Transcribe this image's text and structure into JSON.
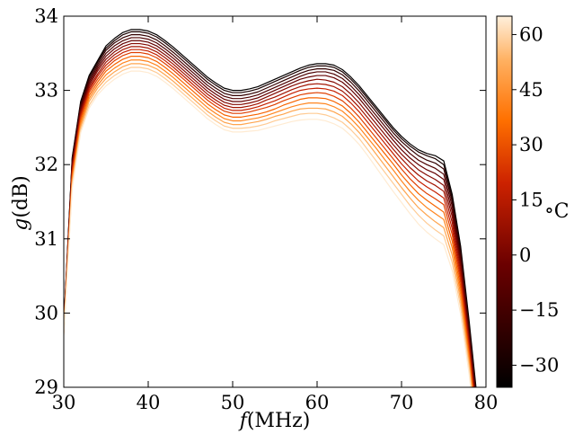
{
  "chart_data": {
    "type": "line",
    "title": "",
    "xlabel": "f (MHz)",
    "xlabel_var": "f",
    "xlabel_unit": "(MHz)",
    "ylabel": "g (dB)",
    "ylabel_var": "g",
    "ylabel_unit": "(dB)",
    "xlim": [
      30,
      80
    ],
    "ylim": [
      29,
      34
    ],
    "xticks": [
      30,
      40,
      50,
      60,
      70,
      80
    ],
    "yticks": [
      29,
      30,
      31,
      32,
      33,
      34
    ],
    "grid": false,
    "legend": "none",
    "colorbar": {
      "label": "°C",
      "label_deg": "∘",
      "label_unit": "C",
      "range": [
        -36,
        65
      ],
      "ticks": [
        -30,
        -15,
        0,
        15,
        30,
        45,
        60
      ],
      "tick_labels": [
        "−30",
        "−15",
        "0",
        "15",
        "30",
        "45",
        "60"
      ],
      "colormap": "gist_heat"
    },
    "x": [
      30,
      31,
      32,
      33,
      34,
      35,
      36,
      37,
      38,
      39,
      40,
      41,
      42,
      43,
      44,
      45,
      46,
      47,
      48,
      49,
      50,
      51,
      52,
      53,
      54,
      55,
      56,
      57,
      58,
      59,
      60,
      61,
      62,
      63,
      64,
      65,
      66,
      67,
      68,
      69,
      70,
      71,
      72,
      73,
      74,
      75,
      76,
      77,
      78,
      79
    ],
    "series": [
      {
        "temperature": -35,
        "values": [
          29.85,
          32.1,
          32.85,
          33.2,
          33.4,
          33.6,
          33.7,
          33.78,
          33.82,
          33.82,
          33.8,
          33.75,
          33.67,
          33.58,
          33.48,
          33.38,
          33.28,
          33.18,
          33.1,
          33.03,
          33.0,
          33.0,
          33.02,
          33.05,
          33.1,
          33.15,
          33.2,
          33.25,
          33.3,
          33.34,
          33.36,
          33.36,
          33.34,
          33.28,
          33.18,
          33.06,
          32.92,
          32.78,
          32.64,
          32.5,
          32.38,
          32.28,
          32.2,
          32.15,
          32.12,
          32.05,
          31.6,
          30.9,
          29.9,
          28.8
        ]
      },
      {
        "temperature": -28,
        "values": [
          29.84,
          32.08,
          32.83,
          33.18,
          33.38,
          33.57,
          33.67,
          33.75,
          33.79,
          33.79,
          33.77,
          33.72,
          33.64,
          33.55,
          33.45,
          33.35,
          33.25,
          33.15,
          33.07,
          33.0,
          32.97,
          32.97,
          32.99,
          33.02,
          33.07,
          33.12,
          33.17,
          33.22,
          33.27,
          33.31,
          33.33,
          33.33,
          33.31,
          33.25,
          33.15,
          33.03,
          32.89,
          32.75,
          32.61,
          32.47,
          32.35,
          32.25,
          32.17,
          32.12,
          32.08,
          32.0,
          31.55,
          30.85,
          29.85,
          28.75
        ]
      },
      {
        "temperature": -20,
        "values": [
          29.83,
          32.06,
          32.81,
          33.15,
          33.35,
          33.54,
          33.64,
          33.71,
          33.75,
          33.75,
          33.73,
          33.68,
          33.6,
          33.51,
          33.41,
          33.31,
          33.21,
          33.11,
          33.03,
          32.96,
          32.93,
          32.93,
          32.95,
          32.98,
          33.03,
          33.08,
          33.13,
          33.18,
          33.23,
          33.27,
          33.29,
          33.29,
          33.27,
          33.21,
          33.11,
          32.99,
          32.85,
          32.71,
          32.57,
          32.43,
          32.31,
          32.21,
          32.12,
          32.06,
          32.02,
          31.94,
          31.5,
          30.8,
          29.8,
          28.7
        ]
      },
      {
        "temperature": -12,
        "values": [
          29.82,
          32.03,
          32.78,
          33.12,
          33.32,
          33.5,
          33.6,
          33.67,
          33.71,
          33.71,
          33.69,
          33.64,
          33.56,
          33.47,
          33.37,
          33.27,
          33.17,
          33.07,
          32.99,
          32.92,
          32.89,
          32.89,
          32.91,
          32.94,
          32.99,
          33.04,
          33.09,
          33.14,
          33.19,
          33.23,
          33.25,
          33.25,
          33.22,
          33.16,
          33.06,
          32.94,
          32.8,
          32.66,
          32.52,
          32.38,
          32.26,
          32.15,
          32.06,
          32.0,
          31.95,
          31.87,
          31.44,
          30.74,
          29.75,
          28.65
        ]
      },
      {
        "temperature": -5,
        "values": [
          29.81,
          32.0,
          32.75,
          33.09,
          33.29,
          33.46,
          33.56,
          33.63,
          33.67,
          33.67,
          33.65,
          33.6,
          33.52,
          33.43,
          33.33,
          33.23,
          33.13,
          33.03,
          32.95,
          32.88,
          32.85,
          32.85,
          32.87,
          32.9,
          32.95,
          33.0,
          33.05,
          33.1,
          33.15,
          33.18,
          33.2,
          33.2,
          33.17,
          33.11,
          33.01,
          32.89,
          32.75,
          32.61,
          32.47,
          32.33,
          32.2,
          32.09,
          32.0,
          31.93,
          31.88,
          31.8,
          31.37,
          30.68,
          29.7,
          28.6
        ]
      },
      {
        "temperature": 3,
        "values": [
          29.8,
          31.97,
          32.72,
          33.06,
          33.26,
          33.42,
          33.52,
          33.59,
          33.63,
          33.63,
          33.61,
          33.56,
          33.48,
          33.39,
          33.29,
          33.19,
          33.09,
          32.99,
          32.91,
          32.84,
          32.81,
          32.81,
          32.83,
          32.86,
          32.91,
          32.96,
          33.01,
          33.06,
          33.1,
          33.13,
          33.15,
          33.14,
          33.11,
          33.05,
          32.95,
          32.83,
          32.69,
          32.55,
          32.41,
          32.27,
          32.14,
          32.03,
          31.93,
          31.86,
          31.8,
          31.72,
          31.3,
          30.62,
          29.65,
          28.55
        ]
      },
      {
        "temperature": 10,
        "values": [
          29.79,
          31.94,
          32.69,
          33.03,
          33.22,
          33.38,
          33.48,
          33.55,
          33.59,
          33.59,
          33.57,
          33.52,
          33.44,
          33.35,
          33.25,
          33.15,
          33.05,
          32.95,
          32.87,
          32.8,
          32.77,
          32.77,
          32.79,
          32.82,
          32.87,
          32.91,
          32.96,
          33.01,
          33.05,
          33.08,
          33.09,
          33.08,
          33.05,
          32.99,
          32.89,
          32.77,
          32.63,
          32.49,
          32.35,
          32.21,
          32.08,
          31.96,
          31.86,
          31.78,
          31.72,
          31.64,
          31.22,
          30.55,
          29.6,
          28.5
        ]
      },
      {
        "temperature": 18,
        "values": [
          29.78,
          31.91,
          32.66,
          33.0,
          33.19,
          33.34,
          33.44,
          33.51,
          33.55,
          33.55,
          33.53,
          33.48,
          33.4,
          33.31,
          33.21,
          33.11,
          33.01,
          32.91,
          32.83,
          32.76,
          32.73,
          32.73,
          32.75,
          32.78,
          32.82,
          32.86,
          32.91,
          32.96,
          33.0,
          33.02,
          33.03,
          33.02,
          32.99,
          32.93,
          32.83,
          32.71,
          32.57,
          32.43,
          32.29,
          32.15,
          32.01,
          31.89,
          31.78,
          31.7,
          31.63,
          31.55,
          31.14,
          30.48,
          29.55,
          28.45
        ]
      },
      {
        "temperature": 26,
        "values": [
          29.77,
          31.88,
          32.63,
          32.97,
          33.15,
          33.3,
          33.4,
          33.47,
          33.51,
          33.51,
          33.49,
          33.44,
          33.36,
          33.27,
          33.17,
          33.07,
          32.97,
          32.87,
          32.79,
          32.72,
          32.69,
          32.69,
          32.71,
          32.74,
          32.77,
          32.81,
          32.86,
          32.9,
          32.94,
          32.96,
          32.97,
          32.96,
          32.92,
          32.86,
          32.76,
          32.64,
          32.5,
          32.36,
          32.22,
          32.08,
          31.94,
          31.81,
          31.7,
          31.61,
          31.54,
          31.46,
          31.06,
          30.41,
          29.5,
          28.4
        ]
      },
      {
        "temperature": 34,
        "values": [
          29.76,
          31.84,
          32.59,
          32.93,
          33.11,
          33.26,
          33.35,
          33.42,
          33.46,
          33.46,
          33.44,
          33.39,
          33.31,
          33.22,
          33.12,
          33.02,
          32.92,
          32.82,
          32.74,
          32.67,
          32.64,
          32.64,
          32.66,
          32.68,
          32.71,
          32.75,
          32.8,
          32.84,
          32.88,
          32.9,
          32.9,
          32.89,
          32.85,
          32.79,
          32.69,
          32.57,
          32.43,
          32.29,
          32.15,
          32.01,
          31.86,
          31.73,
          31.61,
          31.52,
          31.44,
          31.36,
          30.97,
          30.33,
          29.44,
          28.35
        ]
      },
      {
        "temperature": 42,
        "values": [
          29.75,
          31.8,
          32.55,
          32.89,
          33.07,
          33.21,
          33.3,
          33.37,
          33.41,
          33.41,
          33.39,
          33.34,
          33.26,
          33.17,
          33.07,
          32.97,
          32.87,
          32.77,
          32.69,
          32.62,
          32.59,
          32.59,
          32.61,
          32.63,
          32.66,
          32.7,
          32.74,
          32.78,
          32.81,
          32.83,
          32.83,
          32.82,
          32.78,
          32.72,
          32.62,
          32.5,
          32.36,
          32.22,
          32.07,
          31.93,
          31.78,
          31.64,
          31.52,
          31.42,
          31.34,
          31.26,
          30.88,
          30.25,
          29.38,
          28.3
        ]
      },
      {
        "temperature": 50,
        "values": [
          29.74,
          31.76,
          32.51,
          32.85,
          33.03,
          33.16,
          33.25,
          33.32,
          33.36,
          33.36,
          33.34,
          33.29,
          33.21,
          33.12,
          33.02,
          32.92,
          32.82,
          32.72,
          32.64,
          32.57,
          32.54,
          32.54,
          32.56,
          32.58,
          32.61,
          32.65,
          32.68,
          32.72,
          32.75,
          32.76,
          32.76,
          32.75,
          32.71,
          32.65,
          32.55,
          32.43,
          32.29,
          32.14,
          31.99,
          31.84,
          31.69,
          31.55,
          31.42,
          31.32,
          31.23,
          31.15,
          30.78,
          30.17,
          29.32,
          28.25
        ]
      },
      {
        "temperature": 58,
        "values": [
          29.72,
          31.72,
          32.47,
          32.8,
          32.98,
          33.11,
          33.2,
          33.27,
          33.31,
          33.31,
          33.29,
          33.24,
          33.16,
          33.07,
          32.97,
          32.87,
          32.77,
          32.67,
          32.59,
          32.52,
          32.49,
          32.49,
          32.5,
          32.52,
          32.55,
          32.59,
          32.62,
          32.65,
          32.68,
          32.69,
          32.69,
          32.67,
          32.63,
          32.57,
          32.47,
          32.35,
          32.2,
          32.05,
          31.9,
          31.75,
          31.6,
          31.45,
          31.32,
          31.21,
          31.12,
          31.04,
          30.68,
          30.08,
          29.26,
          28.2
        ]
      },
      {
        "temperature": 64,
        "values": [
          29.7,
          31.68,
          32.43,
          32.76,
          32.94,
          33.06,
          33.15,
          33.22,
          33.26,
          33.26,
          33.24,
          33.19,
          33.11,
          33.02,
          32.92,
          32.82,
          32.72,
          32.62,
          32.54,
          32.47,
          32.44,
          32.44,
          32.45,
          32.46,
          32.49,
          32.52,
          32.55,
          32.58,
          32.6,
          32.61,
          32.61,
          32.59,
          32.55,
          32.49,
          32.39,
          32.27,
          32.12,
          31.96,
          31.8,
          31.64,
          31.49,
          31.34,
          31.2,
          31.09,
          31.0,
          30.92,
          30.57,
          29.98,
          29.18,
          28.15
        ]
      }
    ]
  }
}
